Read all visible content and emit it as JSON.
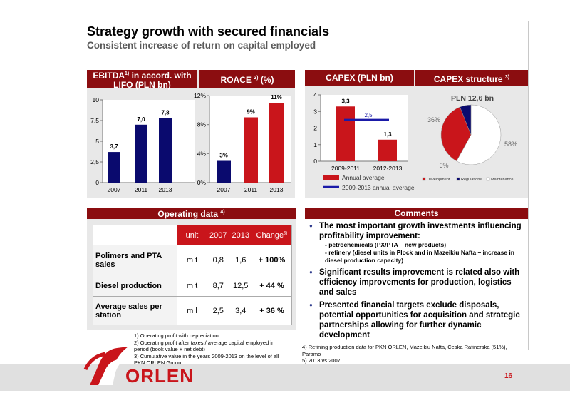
{
  "header": {
    "title": "Strategy growth with secured financials",
    "subtitle": "Consistent increase of return on capital employed"
  },
  "panels": {
    "ebitda_title_1": "EBITDA",
    "ebitda_title_sup": "1)",
    "ebitda_title_2": " in accord. with",
    "ebitda_title_3": "LIFO (PLN bn)",
    "roace_title": "ROACE",
    "roace_title_sup": "2)",
    "roace_title_2": " (%)",
    "capex_title": "CAPEX (PLN bn)",
    "capex_structure_title": "CAPEX structure",
    "capex_structure_sup": "3)",
    "operating_title": "Operating data",
    "operating_sup": "4)",
    "comments_title": "Comments"
  },
  "chart_data": [
    {
      "type": "bar",
      "categories": [
        "2007",
        "2011",
        "2013"
      ],
      "values": [
        3.7,
        7.0,
        7.8
      ],
      "value_labels": [
        "3,7",
        "7,0",
        "7,8"
      ],
      "yticks": [
        "0",
        "2,5",
        "5",
        "7,5",
        "10"
      ],
      "ylim": [
        0,
        10
      ],
      "color": "#0a0a6e"
    },
    {
      "type": "bar",
      "categories": [
        "2007",
        "2011",
        "2013"
      ],
      "values": [
        3,
        9,
        11
      ],
      "value_labels": [
        "3%",
        "9%",
        "11%"
      ],
      "yticks": [
        "0%",
        "4%",
        "8%",
        "12%"
      ],
      "ylim": [
        0,
        12
      ],
      "colors": [
        "#0a0a6e",
        "#c9151b",
        "#c9151b"
      ]
    },
    {
      "type": "bar",
      "categories": [
        "2009-2011",
        "2012-2013"
      ],
      "values": [
        3.3,
        1.3
      ],
      "value_labels": [
        "3,3",
        "1,3"
      ],
      "yticks": [
        "0",
        "1",
        "2",
        "3",
        "4"
      ],
      "ylim": [
        0,
        4
      ],
      "color": "#c9151b",
      "average_line": {
        "value": 2.5,
        "label": "2,5",
        "color": "#1a1aa8"
      },
      "legend": [
        "Annual average",
        "2009-2013 annual average"
      ]
    },
    {
      "type": "pie",
      "title": "PLN 12,6 bn",
      "slices": [
        {
          "label": "Development",
          "value": 36,
          "text": "36%",
          "color": "#c9151b"
        },
        {
          "label": "Regulations",
          "value": 6,
          "text": "6%",
          "color": "#0a0a6e"
        },
        {
          "label": "Maintenance",
          "value": 58,
          "text": "58%",
          "color": "#ffffff"
        }
      ],
      "legend": [
        "Development",
        "Regulations",
        "Maintenance"
      ]
    }
  ],
  "operating_table": {
    "headers": [
      "unit",
      "2007",
      "2013",
      "Change",
      "5)"
    ],
    "rows": [
      {
        "name": "Polimers and PTA sales",
        "unit": "m t",
        "v2007": "0,8",
        "v2013": "1,6",
        "change": "+ 100%"
      },
      {
        "name": "Diesel production",
        "unit": "m t",
        "v2007": "8,7",
        "v2013": "12,5",
        "change": "+ 44 %"
      },
      {
        "name": "Average sales per station",
        "unit": "m l",
        "v2007": "2,5",
        "v2013": "3,4",
        "change": "+ 36 %"
      }
    ]
  },
  "comments": {
    "b1": "The most important growth investments influencing profitability improvement:",
    "b1_sub1": "- petrochemicals (PX/PTA – new products)",
    "b1_sub2": "- refinery (diesel units in Plock and in Mazeikiu Nafta – increase in diesel production capacity)",
    "b2": "Significant results improvement is related also with efficiency improvements for production, logistics and sales",
    "b3": "Presented financial targets exclude disposals, potential opportunities for acquisition and strategic partnerships allowing for further dynamic development"
  },
  "footnotes": {
    "f1": "1) Operating profit with depreciation",
    "f2": "2) Operating profit after taxes / average capital employed in period (book value + net debt)",
    "f3": "3) Cumulative value in the years 2009-2013 on the level of all PKN ORLEN Group",
    "f4": "4) Refining production data for PKN ORLEN, Mazeikiu Nafta, Ceska Rafinerska (51%), Paramo",
    "f5": "5) 2013 vs 2007"
  },
  "footer": {
    "brand": "ORLEN",
    "page": "16"
  }
}
